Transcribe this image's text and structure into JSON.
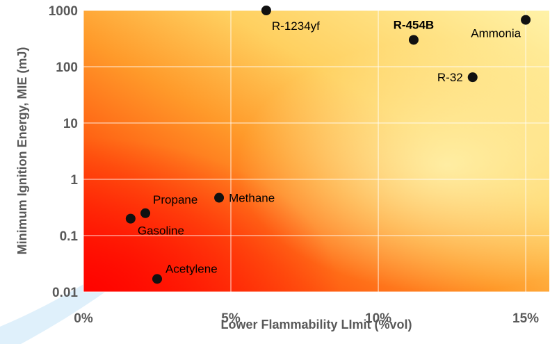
{
  "chart_data": {
    "type": "scatter",
    "title": "",
    "xlabel": "Lower Flammability LImit (%vol)",
    "ylabel": "Minimum Ignition Energy, MIE (mJ)",
    "xlim": [
      0,
      15.8
    ],
    "ylim": [
      0.01,
      1000
    ],
    "y_scale": "log",
    "x_ticks": [
      {
        "value": 0,
        "label": "0%"
      },
      {
        "value": 5,
        "label": "5%"
      },
      {
        "value": 10,
        "label": "10%"
      },
      {
        "value": 15,
        "label": "15%"
      }
    ],
    "y_ticks": [
      {
        "value": 0.01,
        "label": "0.01"
      },
      {
        "value": 0.1,
        "label": "0.1"
      },
      {
        "value": 1,
        "label": "1"
      },
      {
        "value": 10,
        "label": "10"
      },
      {
        "value": 100,
        "label": "100"
      },
      {
        "value": 1000,
        "label": "1000"
      }
    ],
    "grid": true,
    "background": "red-to-yellow gradient (red at low LFL / low MIE, yellow at high LFL / high MIE)",
    "points": [
      {
        "label": "R-1234yf",
        "x": 6.2,
        "y": 1000,
        "label_pos": "below-right",
        "highlight": false
      },
      {
        "label": "R-454B",
        "x": 11.2,
        "y": 300,
        "label_pos": "above",
        "highlight": true
      },
      {
        "label": "Ammonia",
        "x": 15.0,
        "y": 680,
        "label_pos": "below-left",
        "highlight": false
      },
      {
        "label": "R-32",
        "x": 13.2,
        "y": 65,
        "label_pos": "left",
        "highlight": false
      },
      {
        "label": "Methane",
        "x": 4.6,
        "y": 0.47,
        "label_pos": "right",
        "highlight": false
      },
      {
        "label": "Propane",
        "x": 2.1,
        "y": 0.25,
        "label_pos": "above-right",
        "highlight": false
      },
      {
        "label": "Gasoline",
        "x": 1.6,
        "y": 0.2,
        "label_pos": "below-right",
        "highlight": false
      },
      {
        "label": "Acetylene",
        "x": 2.5,
        "y": 0.017,
        "label_pos": "above-right",
        "highlight": false
      }
    ]
  },
  "colors": {
    "gradient_red": "#ff1a00",
    "gradient_orange": "#ff8a1f",
    "gradient_yellow": "#ffe07a",
    "gradient_light": "#fff0a6",
    "grid": "#ffffff",
    "point": "#111111",
    "tick_text": "#595959",
    "highlight_label": "#22aa22",
    "label": "#000000",
    "decor_blue": "#dceefb"
  }
}
